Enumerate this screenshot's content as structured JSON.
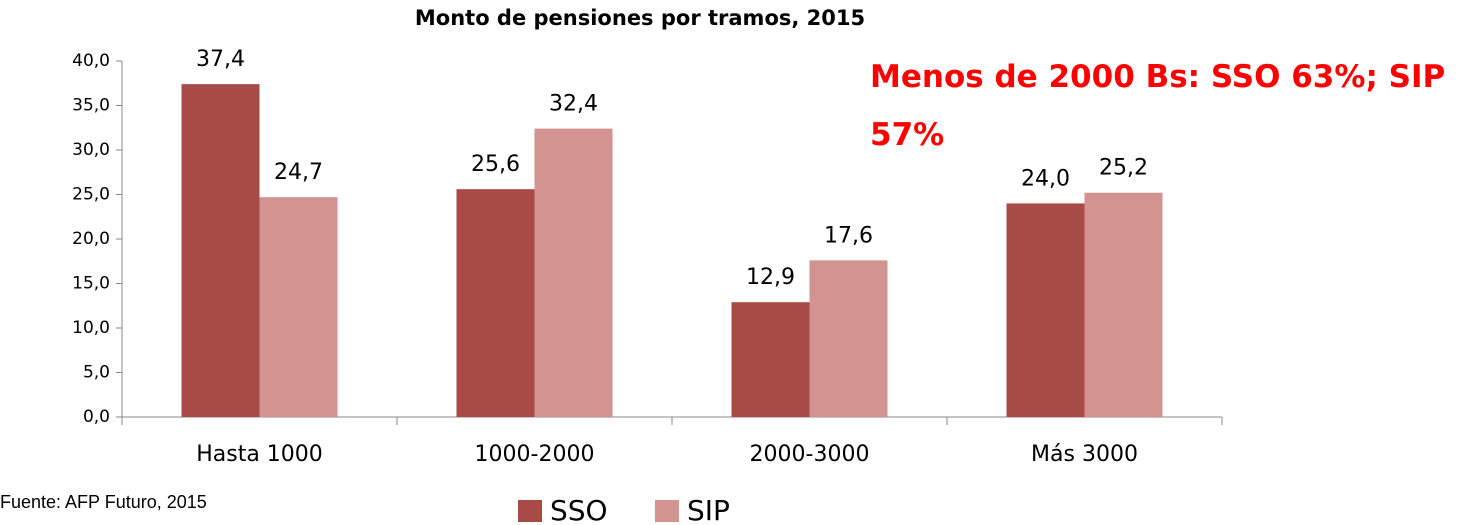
{
  "chart_data": {
    "type": "bar",
    "title": "Monto de pensiones  por tramos, 2015",
    "categories": [
      "Hasta 1000",
      "1000-2000",
      "2000-3000",
      "Más 3000"
    ],
    "series": [
      {
        "name": "SSO",
        "color": "#a84a46",
        "values": [
          37.4,
          25.6,
          12.9,
          24.0
        ],
        "value_labels": [
          "37,4",
          "25,6",
          "12,9",
          "24,0"
        ]
      },
      {
        "name": "SIP",
        "color": "#d29391",
        "values": [
          24.7,
          32.4,
          17.6,
          25.2
        ],
        "value_labels": [
          "24,7",
          "32,4",
          "17,6",
          "25,2"
        ]
      }
    ],
    "ylim": [
      0,
      40
    ],
    "yticks": [
      {
        "value": 0,
        "label": "0,0"
      },
      {
        "value": 5,
        "label": "5,0"
      },
      {
        "value": 10,
        "label": "10,0"
      },
      {
        "value": 15,
        "label": "15,0"
      },
      {
        "value": 20,
        "label": "20,0"
      },
      {
        "value": 25,
        "label": "25,0"
      },
      {
        "value": 30,
        "label": "30,0"
      },
      {
        "value": 35,
        "label": "35,0"
      },
      {
        "value": 40,
        "label": "40,0"
      }
    ],
    "grid": false,
    "legend": "bottom",
    "annotation": "Menos de 2000 Bs: SSO 63%; SIP 57%",
    "source": "Fuente: AFP Futuro, 2015"
  }
}
